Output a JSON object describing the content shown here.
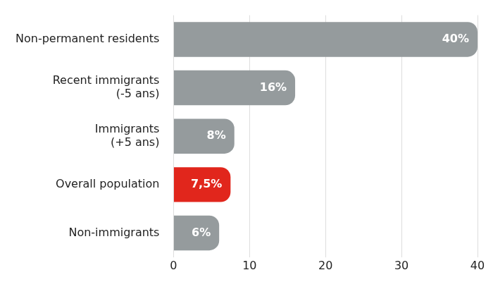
{
  "chart_data": {
    "type": "bar",
    "orientation": "horizontal",
    "categories": [
      [
        "Non-permanent residents"
      ],
      [
        "Recent immigrants",
        "(-5 ans)"
      ],
      [
        "Immigrants",
        "(+5 ans)"
      ],
      [
        "Overall population"
      ],
      [
        "Non-immigrants"
      ]
    ],
    "values": [
      40,
      16,
      8,
      7.5,
      6
    ],
    "value_labels": [
      "40%",
      "16%",
      "8%",
      "7,5%",
      "6%"
    ],
    "colors": [
      "#959b9d",
      "#959b9d",
      "#959b9d",
      "#e1261c",
      "#959b9d"
    ],
    "xlim": [
      0,
      40
    ],
    "xticks": [
      0,
      10,
      20,
      30,
      40
    ],
    "grid": true,
    "data_labels": true
  }
}
